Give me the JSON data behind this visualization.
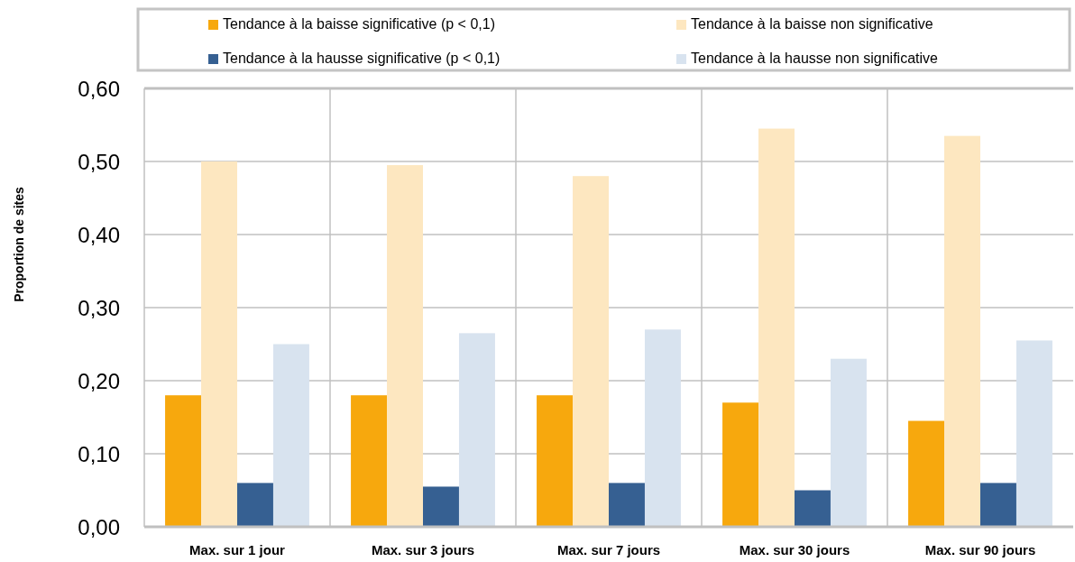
{
  "chart_data": {
    "type": "bar",
    "ylabel": "Proportion de sites",
    "categories": [
      "Max. sur 1 jour",
      "Max. sur 3 jours",
      "Max. sur 7 jours",
      "Max. sur 30 jours",
      "Max. sur 90 jours"
    ],
    "series": [
      {
        "name": "Tendance à la baisse significative (p < 0,1)",
        "color": "#f7a80d",
        "values": [
          0.18,
          0.18,
          0.18,
          0.17,
          0.145
        ]
      },
      {
        "name": "Tendance à la baisse non significative",
        "color": "#fde7c0",
        "values": [
          0.5,
          0.495,
          0.48,
          0.545,
          0.535
        ]
      },
      {
        "name": "Tendance à la hausse significative (p < 0,1)",
        "color": "#366092",
        "values": [
          0.06,
          0.055,
          0.06,
          0.05,
          0.06
        ]
      },
      {
        "name": "Tendance à la hausse non significative",
        "color": "#d8e3ef",
        "values": [
          0.25,
          0.265,
          0.27,
          0.23,
          0.255
        ]
      }
    ],
    "ylim": [
      0,
      0.6
    ],
    "yticks": [
      {
        "value": 0,
        "label": "0,00"
      },
      {
        "value": 0.1,
        "label": "0,10"
      },
      {
        "value": 0.2,
        "label": "0,20"
      },
      {
        "value": 0.3,
        "label": "0,30"
      },
      {
        "value": 0.4,
        "label": "0,40"
      },
      {
        "value": 0.5,
        "label": "0,50"
      },
      {
        "value": 0.6,
        "label": "0,60"
      }
    ],
    "grid": true,
    "legend": "top"
  }
}
